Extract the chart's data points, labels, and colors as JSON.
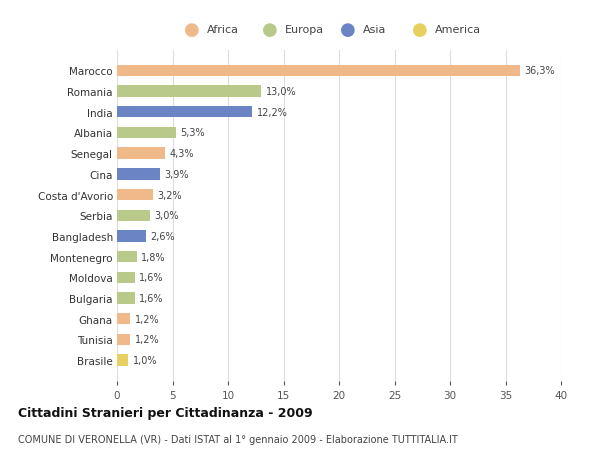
{
  "countries": [
    "Marocco",
    "Romania",
    "India",
    "Albania",
    "Senegal",
    "Cina",
    "Costa d'Avorio",
    "Serbia",
    "Bangladesh",
    "Montenegro",
    "Moldova",
    "Bulgaria",
    "Ghana",
    "Tunisia",
    "Brasile"
  ],
  "values": [
    36.3,
    13.0,
    12.2,
    5.3,
    4.3,
    3.9,
    3.2,
    3.0,
    2.6,
    1.8,
    1.6,
    1.6,
    1.2,
    1.2,
    1.0
  ],
  "labels": [
    "36,3%",
    "13,0%",
    "12,2%",
    "5,3%",
    "4,3%",
    "3,9%",
    "3,2%",
    "3,0%",
    "2,6%",
    "1,8%",
    "1,6%",
    "1,6%",
    "1,2%",
    "1,2%",
    "1,0%"
  ],
  "colors": [
    "#F0B98A",
    "#B8C98A",
    "#6B84C4",
    "#B8C98A",
    "#F0B98A",
    "#6B84C4",
    "#F0B98A",
    "#B8C98A",
    "#6B84C4",
    "#B8C98A",
    "#B8C98A",
    "#B8C98A",
    "#F0B98A",
    "#F0B98A",
    "#E8D060"
  ],
  "legend_labels": [
    "Africa",
    "Europa",
    "Asia",
    "America"
  ],
  "legend_colors": [
    "#F0B98A",
    "#B8C98A",
    "#6B84C4",
    "#E8D060"
  ],
  "title": "Cittadini Stranieri per Cittadinanza - 2009",
  "subtitle": "COMUNE DI VERONELLA (VR) - Dati ISTAT al 1° gennaio 2009 - Elaborazione TUTTITALIA.IT",
  "xlim": [
    0,
    40
  ],
  "xticks": [
    0,
    5,
    10,
    15,
    20,
    25,
    30,
    35,
    40
  ],
  "bg_color": "#FFFFFF",
  "grid_color": "#DDDDDD",
  "bar_height": 0.55
}
